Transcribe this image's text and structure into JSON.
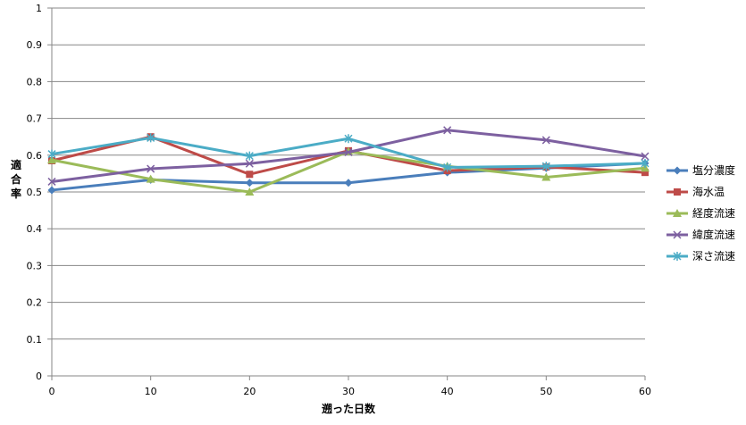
{
  "chart_data": {
    "type": "line",
    "xlabel": "遡った日数",
    "ylabel": "適合率",
    "x": [
      0,
      10,
      20,
      30,
      40,
      50,
      60
    ],
    "xlim": [
      0,
      60
    ],
    "ylim": [
      0,
      1
    ],
    "x_ticks": [
      "0",
      "10",
      "20",
      "30",
      "40",
      "50",
      "60"
    ],
    "y_ticks": [
      "0",
      "0.1",
      "0.2",
      "0.3",
      "0.4",
      "0.5",
      "0.6",
      "0.7",
      "0.8",
      "0.9",
      "1"
    ],
    "grid": "horizontal",
    "legend_position": "right",
    "series": [
      {
        "name": "塩分濃度",
        "color": "#4A7EBB",
        "marker": "diamond",
        "values": [
          0.505,
          0.533,
          0.525,
          0.525,
          0.553,
          0.565,
          0.578
        ]
      },
      {
        "name": "海水温",
        "color": "#BE4B48",
        "marker": "square",
        "values": [
          0.585,
          0.65,
          0.548,
          0.612,
          0.558,
          0.568,
          0.553
        ]
      },
      {
        "name": "経度流速",
        "color": "#9BBB59",
        "marker": "triangle",
        "values": [
          0.587,
          0.535,
          0.5,
          0.61,
          0.57,
          0.54,
          0.565
        ]
      },
      {
        "name": "緯度流速",
        "color": "#7D60A0",
        "marker": "x",
        "values": [
          0.528,
          0.563,
          0.577,
          0.608,
          0.668,
          0.641,
          0.597
        ]
      },
      {
        "name": "深さ流速",
        "color": "#4BACC6",
        "marker": "star",
        "values": [
          0.603,
          0.647,
          0.598,
          0.645,
          0.567,
          0.57,
          0.578
        ]
      }
    ]
  }
}
